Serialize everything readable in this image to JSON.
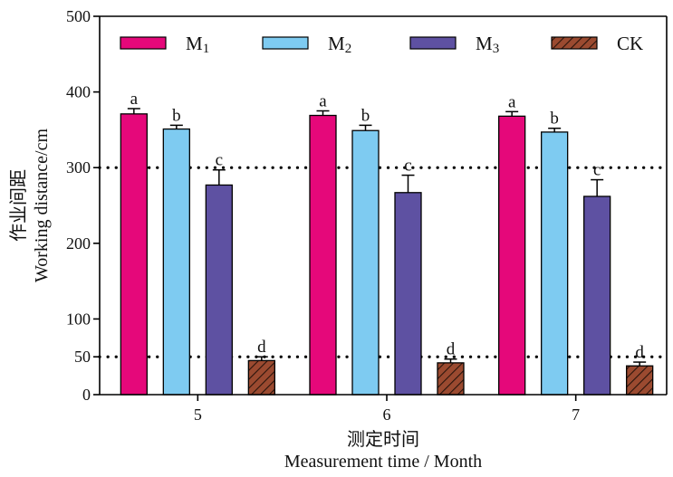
{
  "chart_data": {
    "type": "bar",
    "xlabel_cn": "测定时间",
    "xlabel_en": "Measurement time / Month",
    "ylabel_cn": "作业间距",
    "ylabel_en": "Working distance/cm",
    "ylim": [
      0,
      500
    ],
    "yticks": [
      "0",
      "50",
      "100",
      "200",
      "300",
      "400",
      "500"
    ],
    "categories": [
      "5",
      "6",
      "7"
    ],
    "reference_lines": [
      50,
      300
    ],
    "legend_position": "top",
    "series": [
      {
        "name": "M",
        "subscript": "1",
        "color": "#e5087a",
        "values": [
          371,
          369,
          368
        ],
        "errors": [
          7,
          6,
          6
        ],
        "labels": [
          "a",
          "a",
          "a"
        ]
      },
      {
        "name": "M",
        "subscript": "2",
        "color": "#7ecbf1",
        "values": [
          351,
          349,
          347
        ],
        "errors": [
          5,
          7,
          5
        ],
        "labels": [
          "b",
          "b",
          "b"
        ]
      },
      {
        "name": "M",
        "subscript": "3",
        "color": "#5e51a2",
        "values": [
          277,
          267,
          262
        ],
        "errors": [
          20,
          23,
          22
        ],
        "labels": [
          "c",
          "c",
          "c"
        ]
      },
      {
        "name": "CK",
        "subscript": "",
        "color": "#9b4a30",
        "pattern": "hatch",
        "values": [
          45,
          42,
          38
        ],
        "errors": [
          5,
          5,
          5
        ],
        "labels": [
          "d",
          "d",
          "d"
        ]
      }
    ]
  }
}
